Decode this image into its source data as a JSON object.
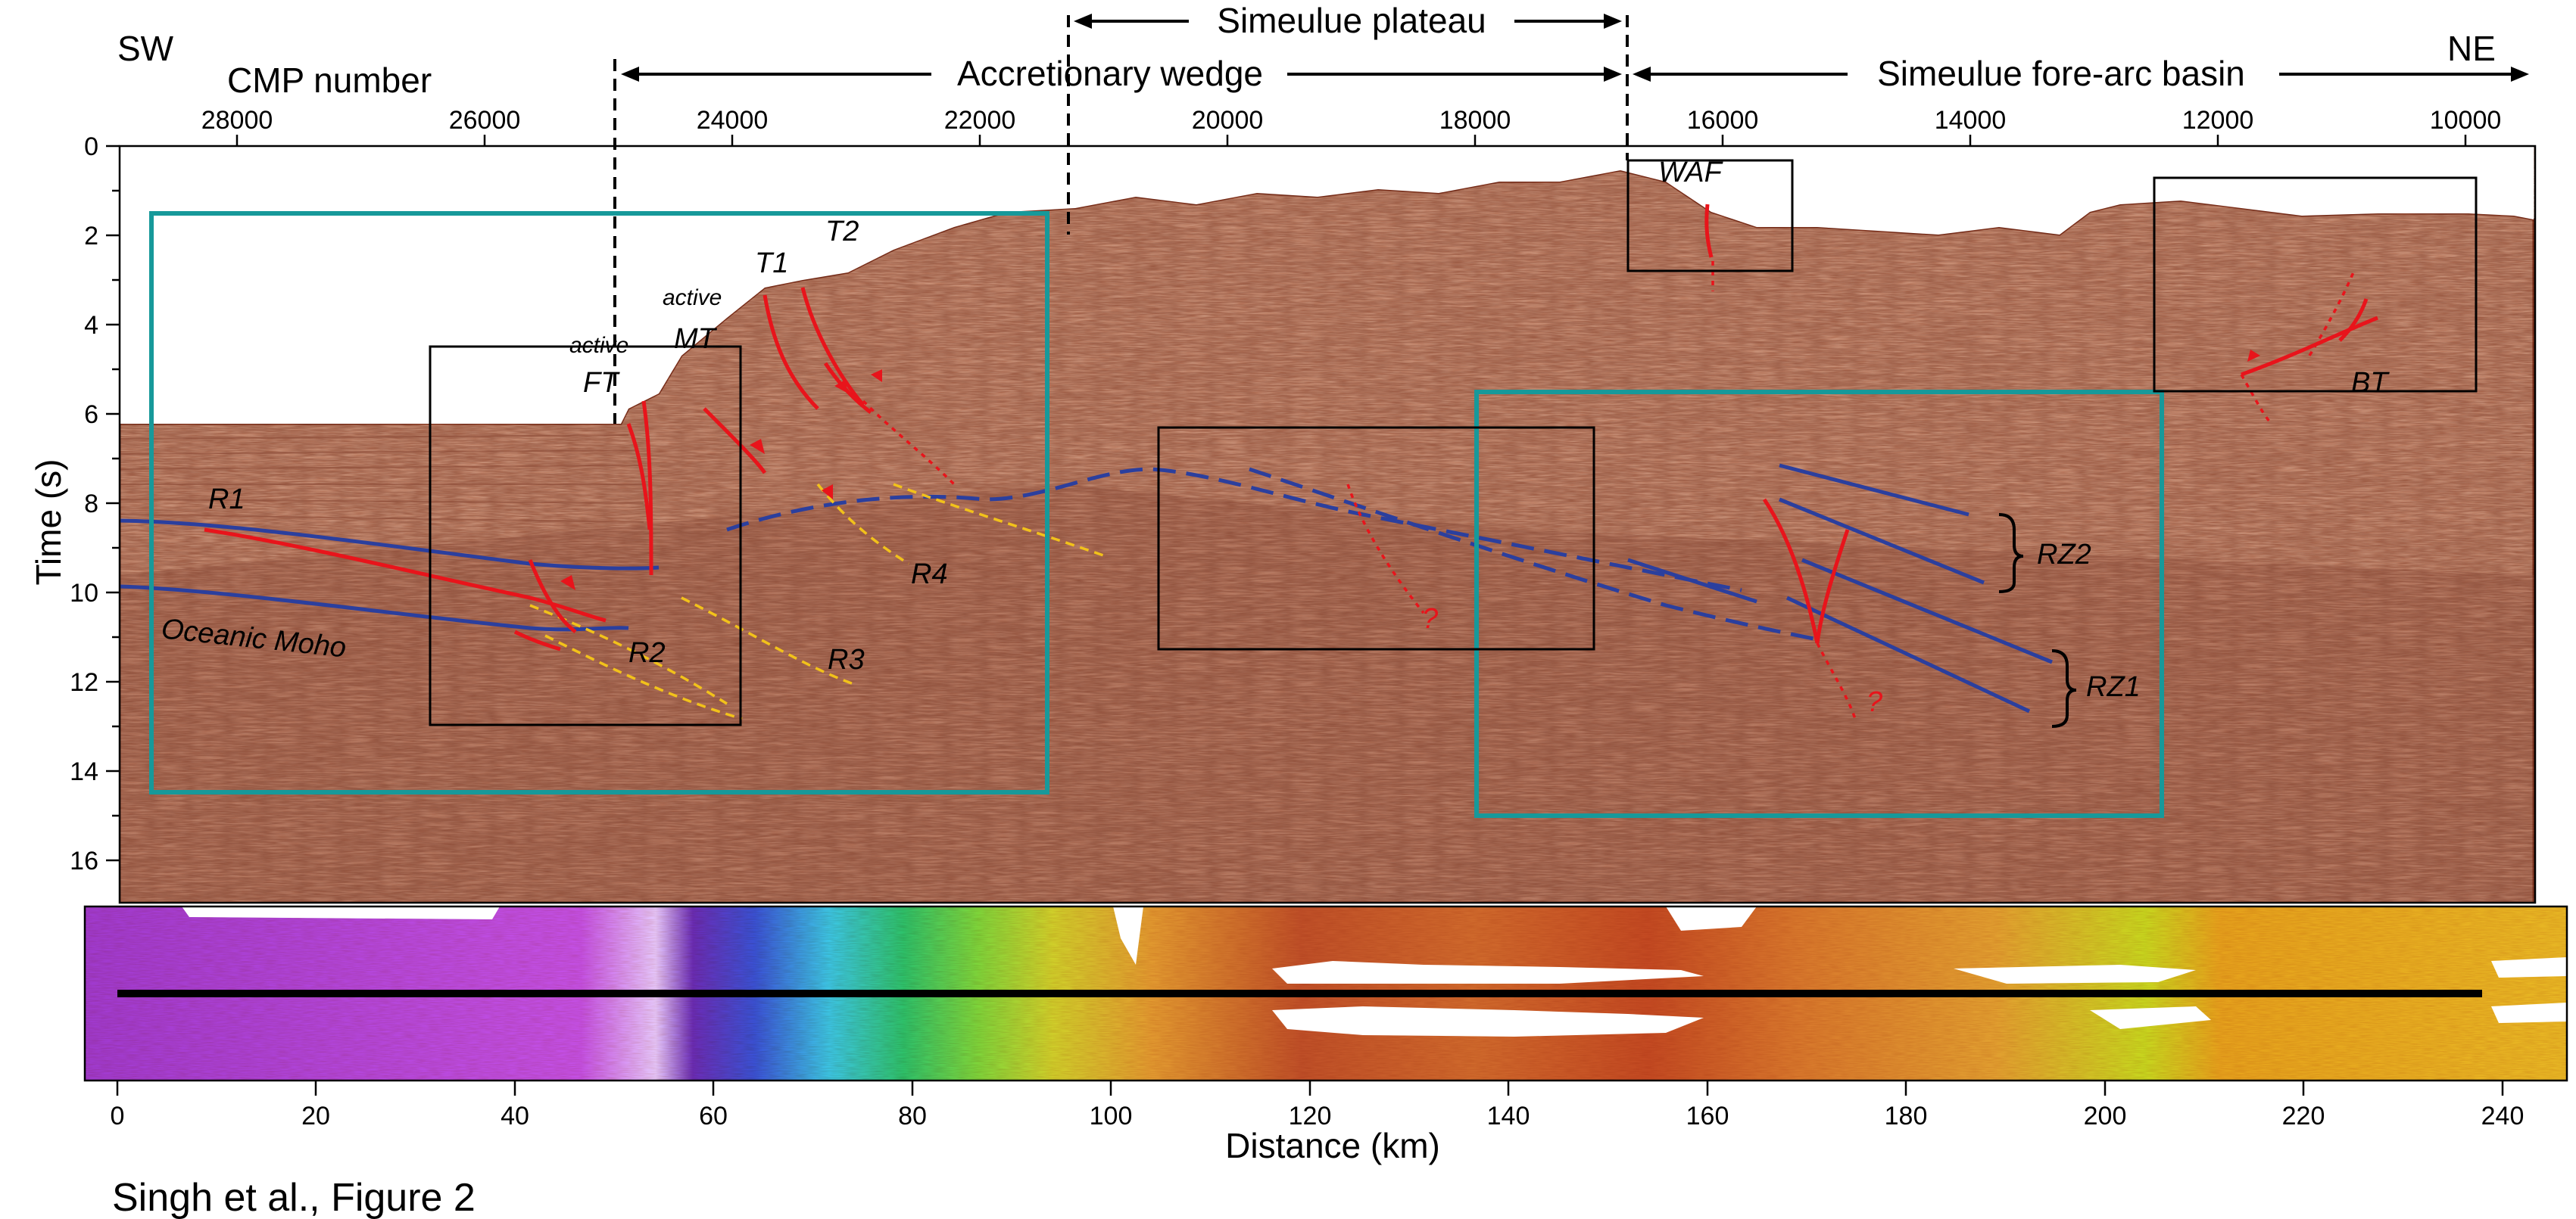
{
  "header": {
    "sw": "SW",
    "ne": "NE",
    "cmp_axis_label": "CMP number",
    "regions": {
      "plateau": "Simeulue plateau",
      "wedge": "Accretionary wedge",
      "basin": "Simeulue fore-arc basin"
    }
  },
  "cmp_ticks": [
    "28000",
    "26000",
    "24000",
    "22000",
    "20000",
    "18000",
    "16000",
    "14000",
    "12000",
    "10000"
  ],
  "time_axis": {
    "label": "Time (s)",
    "ticks": [
      "0",
      "2",
      "4",
      "6",
      "8",
      "10",
      "12",
      "14",
      "16"
    ]
  },
  "distance_axis": {
    "label": "Distance (km)",
    "ticks": [
      "0",
      "20",
      "40",
      "60",
      "80",
      "100",
      "120",
      "140",
      "160",
      "180",
      "200",
      "220",
      "240"
    ]
  },
  "labels": {
    "r1": "R1",
    "r2": "R2",
    "r3": "R3",
    "r4": "R4",
    "moho": "Oceanic Moho",
    "ft": "FT",
    "ft_active": "active",
    "mt": "MT",
    "mt_active": "active",
    "t1": "T1",
    "t2": "T2",
    "waf": "WAF",
    "bt": "BT",
    "rz1": "RZ1",
    "rz2": "RZ2",
    "q1": "?",
    "q2": "?"
  },
  "caption": "Singh et al., Figure 2",
  "colors": {
    "fault": "#e8141b",
    "reflector": "#2b3f9e",
    "teal_box": "#17999a",
    "dashed_yellow": "#f2c21a",
    "seismic_base": "#c78a6e"
  }
}
